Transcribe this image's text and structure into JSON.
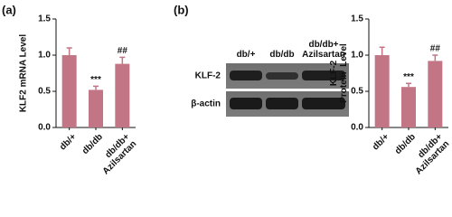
{
  "panels": [
    "(a)",
    "(b)"
  ],
  "blot": {
    "lanes": [
      "db/+",
      "db/db",
      "db/db+\nAzilsartan"
    ],
    "rows": [
      "KLF-2",
      "β-actin"
    ]
  },
  "chart_data": [
    {
      "type": "bar",
      "ylabel": "KLF2 mRNA Level",
      "categories": [
        "db/+",
        "db/db",
        "db/db+\nAzilsartan"
      ],
      "values": [
        1.0,
        0.52,
        0.88
      ],
      "errors": [
        0.1,
        0.05,
        0.09
      ],
      "significance": [
        null,
        "***",
        "##"
      ],
      "color": "#c27585",
      "ylim": [
        0,
        1.5
      ],
      "yticks": [
        {
          "value": 0,
          "label": "0.0"
        },
        {
          "value": 0.5,
          "label": "0.5"
        },
        {
          "value": 1,
          "label": "1.0"
        },
        {
          "value": 1.5,
          "label": "1.5"
        }
      ]
    },
    {
      "type": "bar",
      "ylabel": "KLF-2\nProtein  Level",
      "categories": [
        "db/+",
        "db/db",
        "db/db+\nAzilsartan"
      ],
      "values": [
        1.0,
        0.56,
        0.92
      ],
      "errors": [
        0.11,
        0.05,
        0.08
      ],
      "significance": [
        null,
        "***",
        "##"
      ],
      "color": "#c27585",
      "ylim": [
        0,
        1.5
      ],
      "yticks": [
        {
          "value": 0,
          "label": "0.0"
        },
        {
          "value": 0.5,
          "label": "0.5"
        },
        {
          "value": 1,
          "label": "1.0"
        },
        {
          "value": 1.5,
          "label": "1.5"
        }
      ]
    }
  ]
}
